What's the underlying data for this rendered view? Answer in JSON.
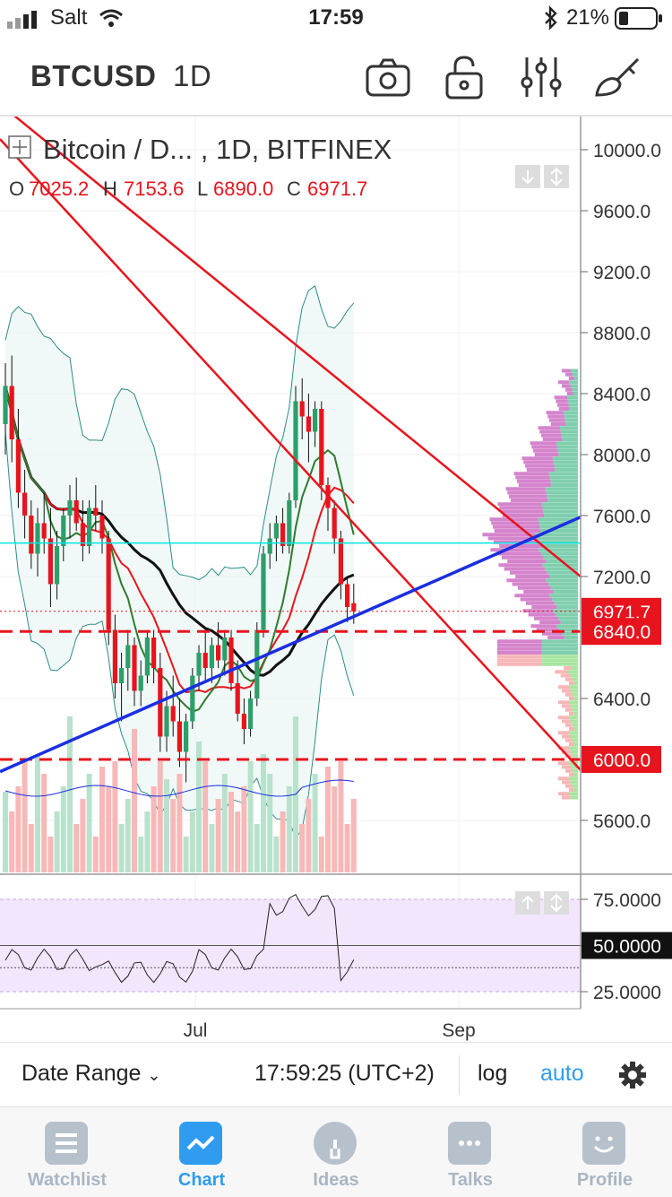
{
  "status_bar": {
    "carrier": "Salt",
    "time": "17:59",
    "battery": "21%"
  },
  "header": {
    "symbol": "BTCUSD",
    "interval": "1D"
  },
  "chart": {
    "legend_title": "Bitcoin / D...  , 1D, BITFINEX",
    "ohlc": {
      "o_label": "O",
      "o": "7025.2",
      "h_label": "H",
      "h": "7153.6",
      "l_label": "L",
      "l": "6890.0",
      "c_label": "C",
      "c": "6971.7"
    },
    "price_badges": {
      "last": "6971.7",
      "support": "6840.0",
      "low": "6000.0"
    },
    "colors": {
      "up": "#2e9e6a",
      "down": "#e8141d",
      "trend_blue": "#1b2ee0",
      "red_line": "#e8141d",
      "cyan": "#00e5e5"
    },
    "x_tick_labels": [
      "Jul",
      "Sep"
    ],
    "rsi_tick_labels": [
      "75.0000",
      "50.0000",
      "25.0000"
    ]
  },
  "chart_data": {
    "type": "candlestick",
    "symbol": "BTCUSD",
    "exchange": "BITFINEX",
    "interval": "1D",
    "last_ohlc": {
      "open": 7025.2,
      "high": 7153.6,
      "low": 6890.0,
      "close": 6971.7
    },
    "y_tick_labels": [
      "10000.0",
      "9600.0",
      "9200.0",
      "8800.0",
      "8400.0",
      "8000.0",
      "7600.0",
      "7200.0",
      "6400.0",
      "5600.0"
    ],
    "horizontal_levels": [
      6840.0,
      6000.0
    ],
    "rsi_levels": [
      75,
      50,
      25
    ],
    "candles": [
      [
        8200,
        8600,
        8000,
        8450
      ],
      [
        8450,
        8650,
        7950,
        8100
      ],
      [
        8100,
        8300,
        7650,
        7750
      ],
      [
        7750,
        7900,
        7450,
        7600
      ],
      [
        7600,
        7700,
        7250,
        7350
      ],
      [
        7350,
        7650,
        7200,
        7550
      ],
      [
        7550,
        7750,
        7350,
        7450
      ],
      [
        7450,
        7650,
        7000,
        7150
      ],
      [
        7150,
        7500,
        7050,
        7400
      ],
      [
        7400,
        7650,
        7300,
        7600
      ],
      [
        7600,
        7800,
        7450,
        7700
      ],
      [
        7700,
        7850,
        7500,
        7550
      ],
      [
        7550,
        7700,
        7300,
        7400
      ],
      [
        7400,
        7700,
        7350,
        7650
      ],
      [
        7650,
        7800,
        7500,
        7600
      ],
      [
        7600,
        7700,
        7350,
        7450
      ],
      [
        7450,
        7500,
        6750,
        6850
      ],
      [
        6850,
        6950,
        6400,
        6500
      ],
      [
        6500,
        6700,
        6250,
        6600
      ],
      [
        6600,
        6850,
        6450,
        6750
      ],
      [
        6750,
        6800,
        6350,
        6450
      ],
      [
        6450,
        6650,
        6350,
        6550
      ],
      [
        6550,
        6850,
        6500,
        6800
      ],
      [
        6800,
        6850,
        6500,
        6600
      ],
      [
        6600,
        6700,
        6050,
        6150
      ],
      [
        6150,
        6450,
        6050,
        6350
      ],
      [
        6350,
        6550,
        6150,
        6250
      ],
      [
        6250,
        6400,
        5950,
        6050
      ],
      [
        6050,
        6300,
        5850,
        6250
      ],
      [
        6250,
        6600,
        6200,
        6550
      ],
      [
        6550,
        6750,
        6450,
        6700
      ],
      [
        6700,
        6850,
        6500,
        6600
      ],
      [
        6600,
        6800,
        6500,
        6750
      ],
      [
        6750,
        6900,
        6600,
        6650
      ],
      [
        6650,
        6850,
        6550,
        6800
      ],
      [
        6800,
        6850,
        6450,
        6500
      ],
      [
        6500,
        6650,
        6250,
        6300
      ],
      [
        6300,
        6400,
        6100,
        6200
      ],
      [
        6200,
        6450,
        6150,
        6400
      ],
      [
        6400,
        6900,
        6350,
        6850
      ],
      [
        6850,
        7400,
        6800,
        7350
      ],
      [
        7350,
        7550,
        7250,
        7450
      ],
      [
        7450,
        7600,
        7300,
        7550
      ],
      [
        7550,
        7650,
        7350,
        7400
      ],
      [
        7400,
        7750,
        7350,
        7700
      ],
      [
        7700,
        8450,
        7650,
        8350
      ],
      [
        8350,
        8500,
        8100,
        8250
      ],
      [
        8250,
        8400,
        7950,
        8150
      ],
      [
        8150,
        8350,
        8050,
        8300
      ],
      [
        8300,
        8350,
        7700,
        7800
      ],
      [
        7800,
        7850,
        7500,
        7650
      ],
      [
        7650,
        7700,
        7350,
        7450
      ],
      [
        7450,
        7500,
        7050,
        7150
      ],
      [
        7150,
        7200,
        6900,
        7000
      ],
      [
        7025.2,
        7153.6,
        6890.0,
        6971.7
      ]
    ]
  }
}
